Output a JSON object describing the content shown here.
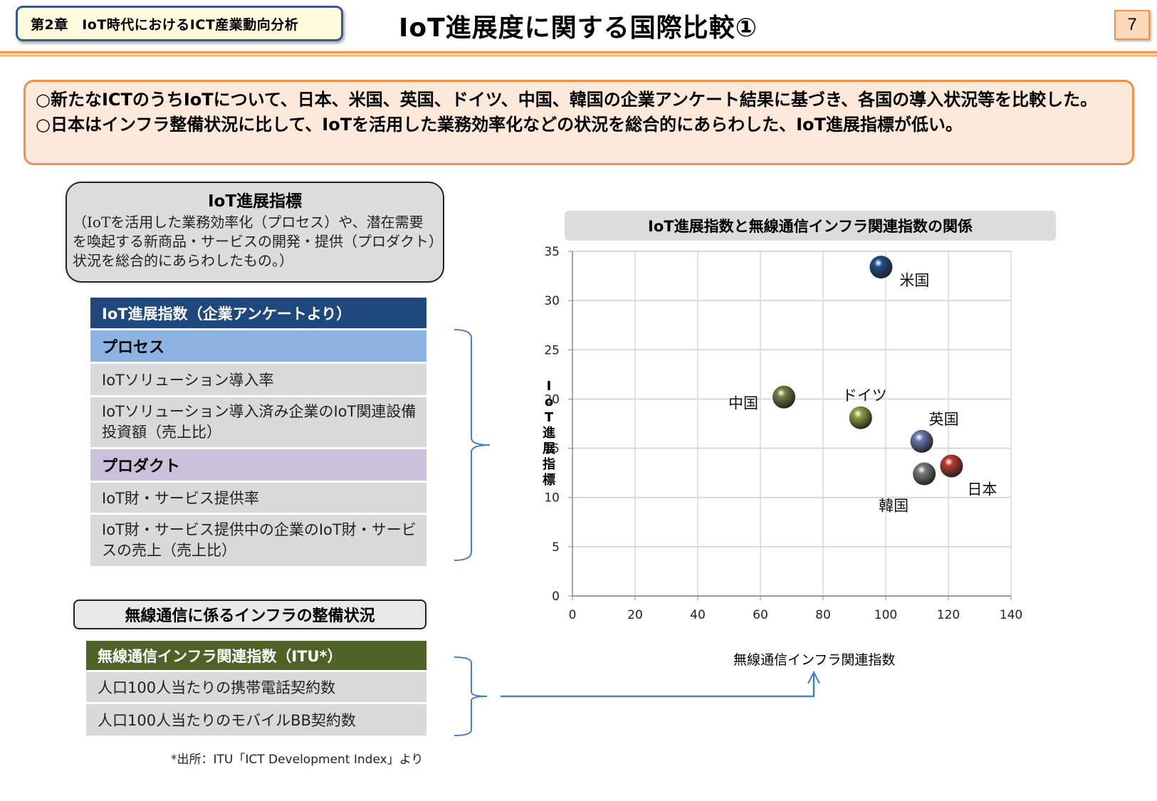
{
  "header": {
    "chapter": "第2章　IoT時代におけるICT産業動向分析",
    "title": "IoT進展度に関する国際比較①",
    "page_number": "7"
  },
  "summary": {
    "line1": "○新たなICTのうちIoTについて、日本、米国、英国、ドイツ、中国、韓国の企業アンケート結果に基づき、各国の導入状況等を比較した。",
    "line2": "○日本はインフラ整備状況に比して、IoTを活用した業務効率化などの状況を総合的にあらわした、IoT進展指標が低い。"
  },
  "definition": {
    "title": "IoT進展指標",
    "body": "（IoTを活用した業務効率化（プロセス）や、潜在需要を喚起する新商品・サービスの開発・提供（プロダクト）状況を総合的にあらわしたもの。）"
  },
  "iot_index": {
    "header": "IoT進展指数（企業アンケートより）",
    "process_label": "プロセス",
    "process_items": [
      "IoTソリューション導入率",
      "IoTソリューション導入済み企業のIoT関連設備投資額（売上比）"
    ],
    "product_label": "プロダクト",
    "product_items": [
      "IoT財・サービス提供率",
      "IoT財・サービス提供中の企業のIoT財・サービスの売上（売上比）"
    ]
  },
  "infra": {
    "title": "無線通信に係るインフラの整備状況",
    "header": "無線通信インフラ関連指数（ITU*）",
    "items": [
      "人口100人当たりの携帯電話契約数",
      "人口100人当たりのモバイルBB契約数"
    ],
    "footnote": "*出所：ITU「ICT Development Index」より"
  },
  "colors": {
    "accent_orange": "#f0924a",
    "navy": "#1f497d",
    "process_blue": "#8db3e2",
    "product_purple": "#ccc1da",
    "olive": "#4f6228",
    "connector_blue": "#4a7ebb"
  },
  "chart_data": {
    "type": "scatter",
    "title": "IoT進展指数と無線通信インフラ関連指数の関係",
    "xlabel": "無線通信インフラ関連指数",
    "ylabel": "IoT進展指標",
    "xlim": [
      0,
      140
    ],
    "ylim": [
      0,
      35
    ],
    "xticks": [
      0,
      20,
      40,
      60,
      80,
      100,
      120,
      140
    ],
    "yticks": [
      0,
      5,
      10,
      15,
      20,
      25,
      30,
      35
    ],
    "grid": true,
    "legend": "none (data labels)",
    "points": [
      {
        "label": "米国",
        "x": 98.5,
        "y": 33.4,
        "color": "#1f4e8c"
      },
      {
        "label": "中国",
        "x": 67.5,
        "y": 20.2,
        "color": "#7a7f45"
      },
      {
        "label": "ドイツ",
        "x": 92.0,
        "y": 18.1,
        "color": "#8aa33c"
      },
      {
        "label": "英国",
        "x": 111.5,
        "y": 15.7,
        "color": "#6a7ab0"
      },
      {
        "label": "日本",
        "x": 121.0,
        "y": 13.2,
        "color": "#c0392b"
      },
      {
        "label": "韓国",
        "x": 112.3,
        "y": 12.4,
        "color": "#7a7a7a"
      }
    ]
  }
}
